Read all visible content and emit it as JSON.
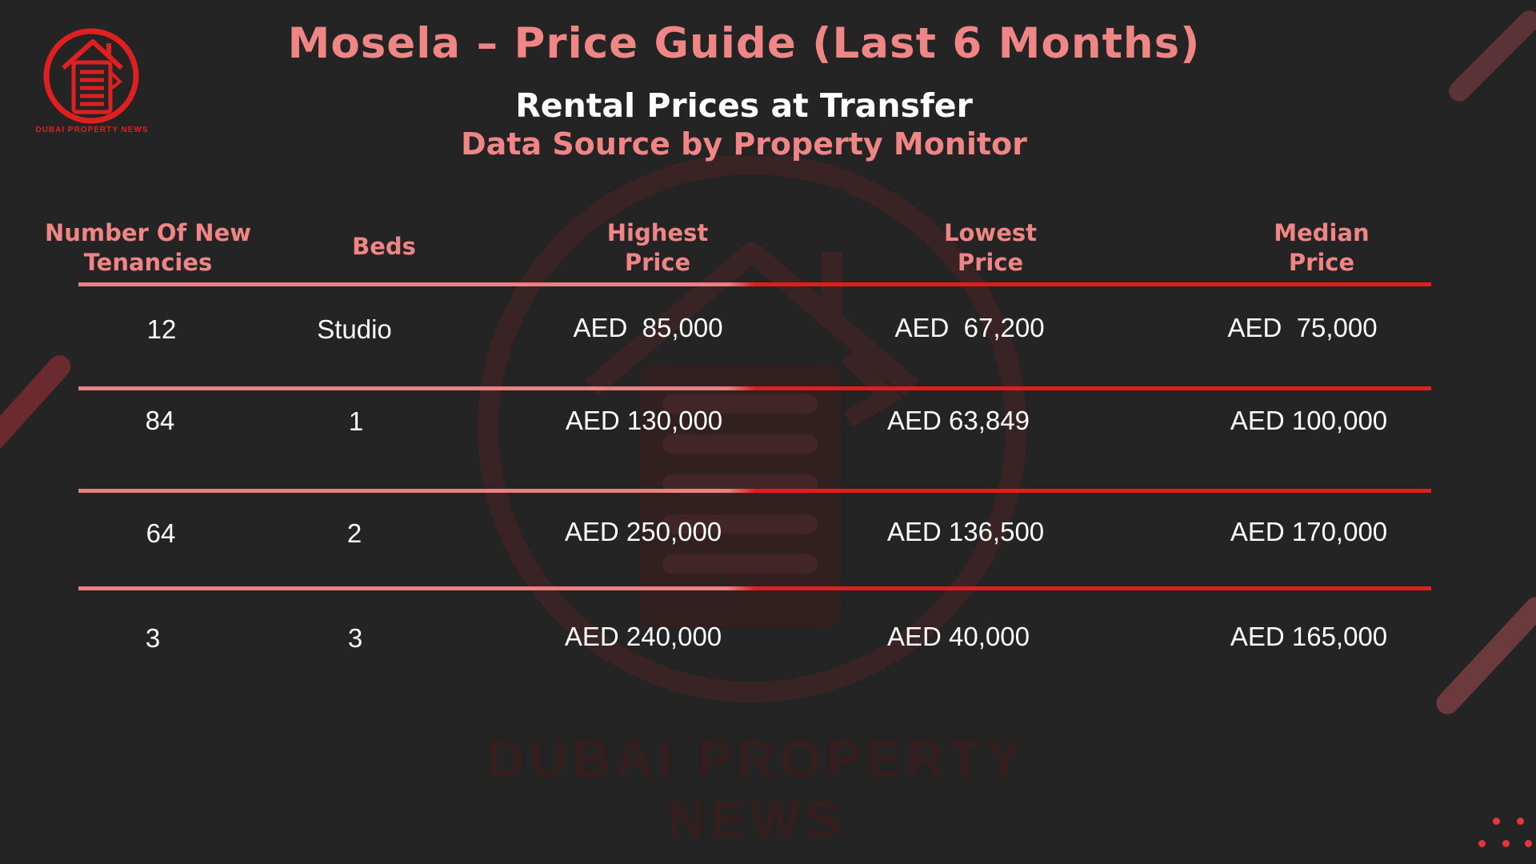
{
  "logo": {
    "caption": "DUBAI PROPERTY NEWS",
    "icon": "house-document-icon"
  },
  "watermark": {
    "text": "DUBAI PROPERTY NEWS",
    "icon": "house-document-icon"
  },
  "header": {
    "title": "Mosela – Price Guide (Last 6 Months)",
    "subtitle": "Rental Prices at Transfer",
    "source": "Data Source by Property Monitor"
  },
  "table": {
    "headers": {
      "tenancies": [
        "Number Of New",
        "Tenancies"
      ],
      "beds": "Beds",
      "highest": [
        "Highest",
        "Price"
      ],
      "lowest": [
        "Lowest",
        "Price"
      ],
      "median": [
        "Median",
        "Price"
      ]
    },
    "rows": [
      {
        "tenancies": "12",
        "beds": "Studio",
        "highest": "AED  85,000",
        "lowest": "AED  67,200",
        "median": "AED  75,000"
      },
      {
        "tenancies": "84",
        "beds": "1",
        "highest": "AED 130,000",
        "lowest": "AED 63,849",
        "median": "AED 100,000"
      },
      {
        "tenancies": "64",
        "beds": "2",
        "highest": "AED 250,000",
        "lowest": "AED 136,500",
        "median": "AED 170,000"
      },
      {
        "tenancies": "3",
        "beds": "3",
        "highest": "AED 240,000",
        "lowest": "AED 40,000",
        "median": "AED 165,000"
      }
    ]
  },
  "colors": {
    "background": "#242424",
    "accent_pink": "#f08585",
    "accent_red": "#e31d1d",
    "text": "#ffffff"
  }
}
